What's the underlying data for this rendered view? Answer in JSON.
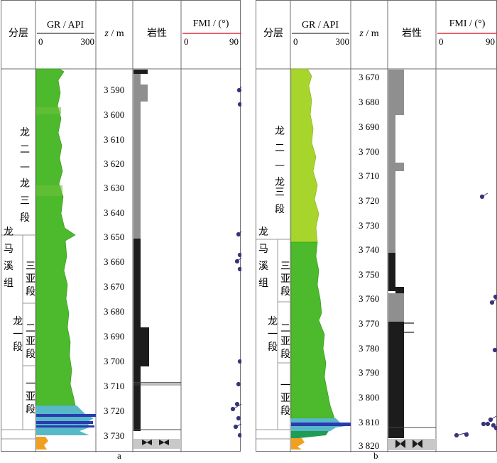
{
  "headers": {
    "layer": "分层",
    "gr": "GR / API",
    "gr_min": "0",
    "gr_max": "300",
    "depth_prefix": "z",
    "depth_unit": " / m",
    "lith": "岩性",
    "fmi": "FMI / (°)",
    "fmi_min": "0",
    "fmi_max": "90"
  },
  "colors": {
    "gr_fill_a": "#4cba2c",
    "gr_fill_b": "#a7d52b",
    "gr_blue": "#2a3ab0",
    "gr_cyan": "#57b8c8",
    "gr_orange": "#f0a020",
    "lith_dark": "#1c1c1c",
    "lith_gray": "#8f8f8f",
    "fmi_dot": "#37347a",
    "fmi_header_line": "#e0303a"
  },
  "panels": [
    {
      "label": "a",
      "depth_labels": [
        "3 590",
        "3 600",
        "3 610",
        "3 620",
        "3 630",
        "3 640",
        "3 650",
        "3 660",
        "3 670",
        "3 680",
        "3 690",
        "3 700",
        "3 710",
        "3 720",
        "3 730"
      ],
      "layers": {
        "formation": "龙马溪组",
        "upper_member": "龙二—龙三段",
        "lower_member": "龙一段",
        "sub3": "三亚段",
        "sub2": "二亚段",
        "sub1": "一亚段"
      }
    },
    {
      "label": "b",
      "depth_labels": [
        "3 670",
        "3 680",
        "3 690",
        "3 700",
        "3 710",
        "3 720",
        "3 730",
        "3 740",
        "3 750",
        "3 760",
        "3 770",
        "3 780",
        "3 790",
        "3 800",
        "3 810",
        "3 820"
      ],
      "layers": {
        "formation": "龙马溪组",
        "upper_member": "龙二—龙三段",
        "lower_member": "龙一段",
        "sub3": "三亚段",
        "sub2": "二亚段",
        "sub1": "一亚段"
      }
    }
  ]
}
